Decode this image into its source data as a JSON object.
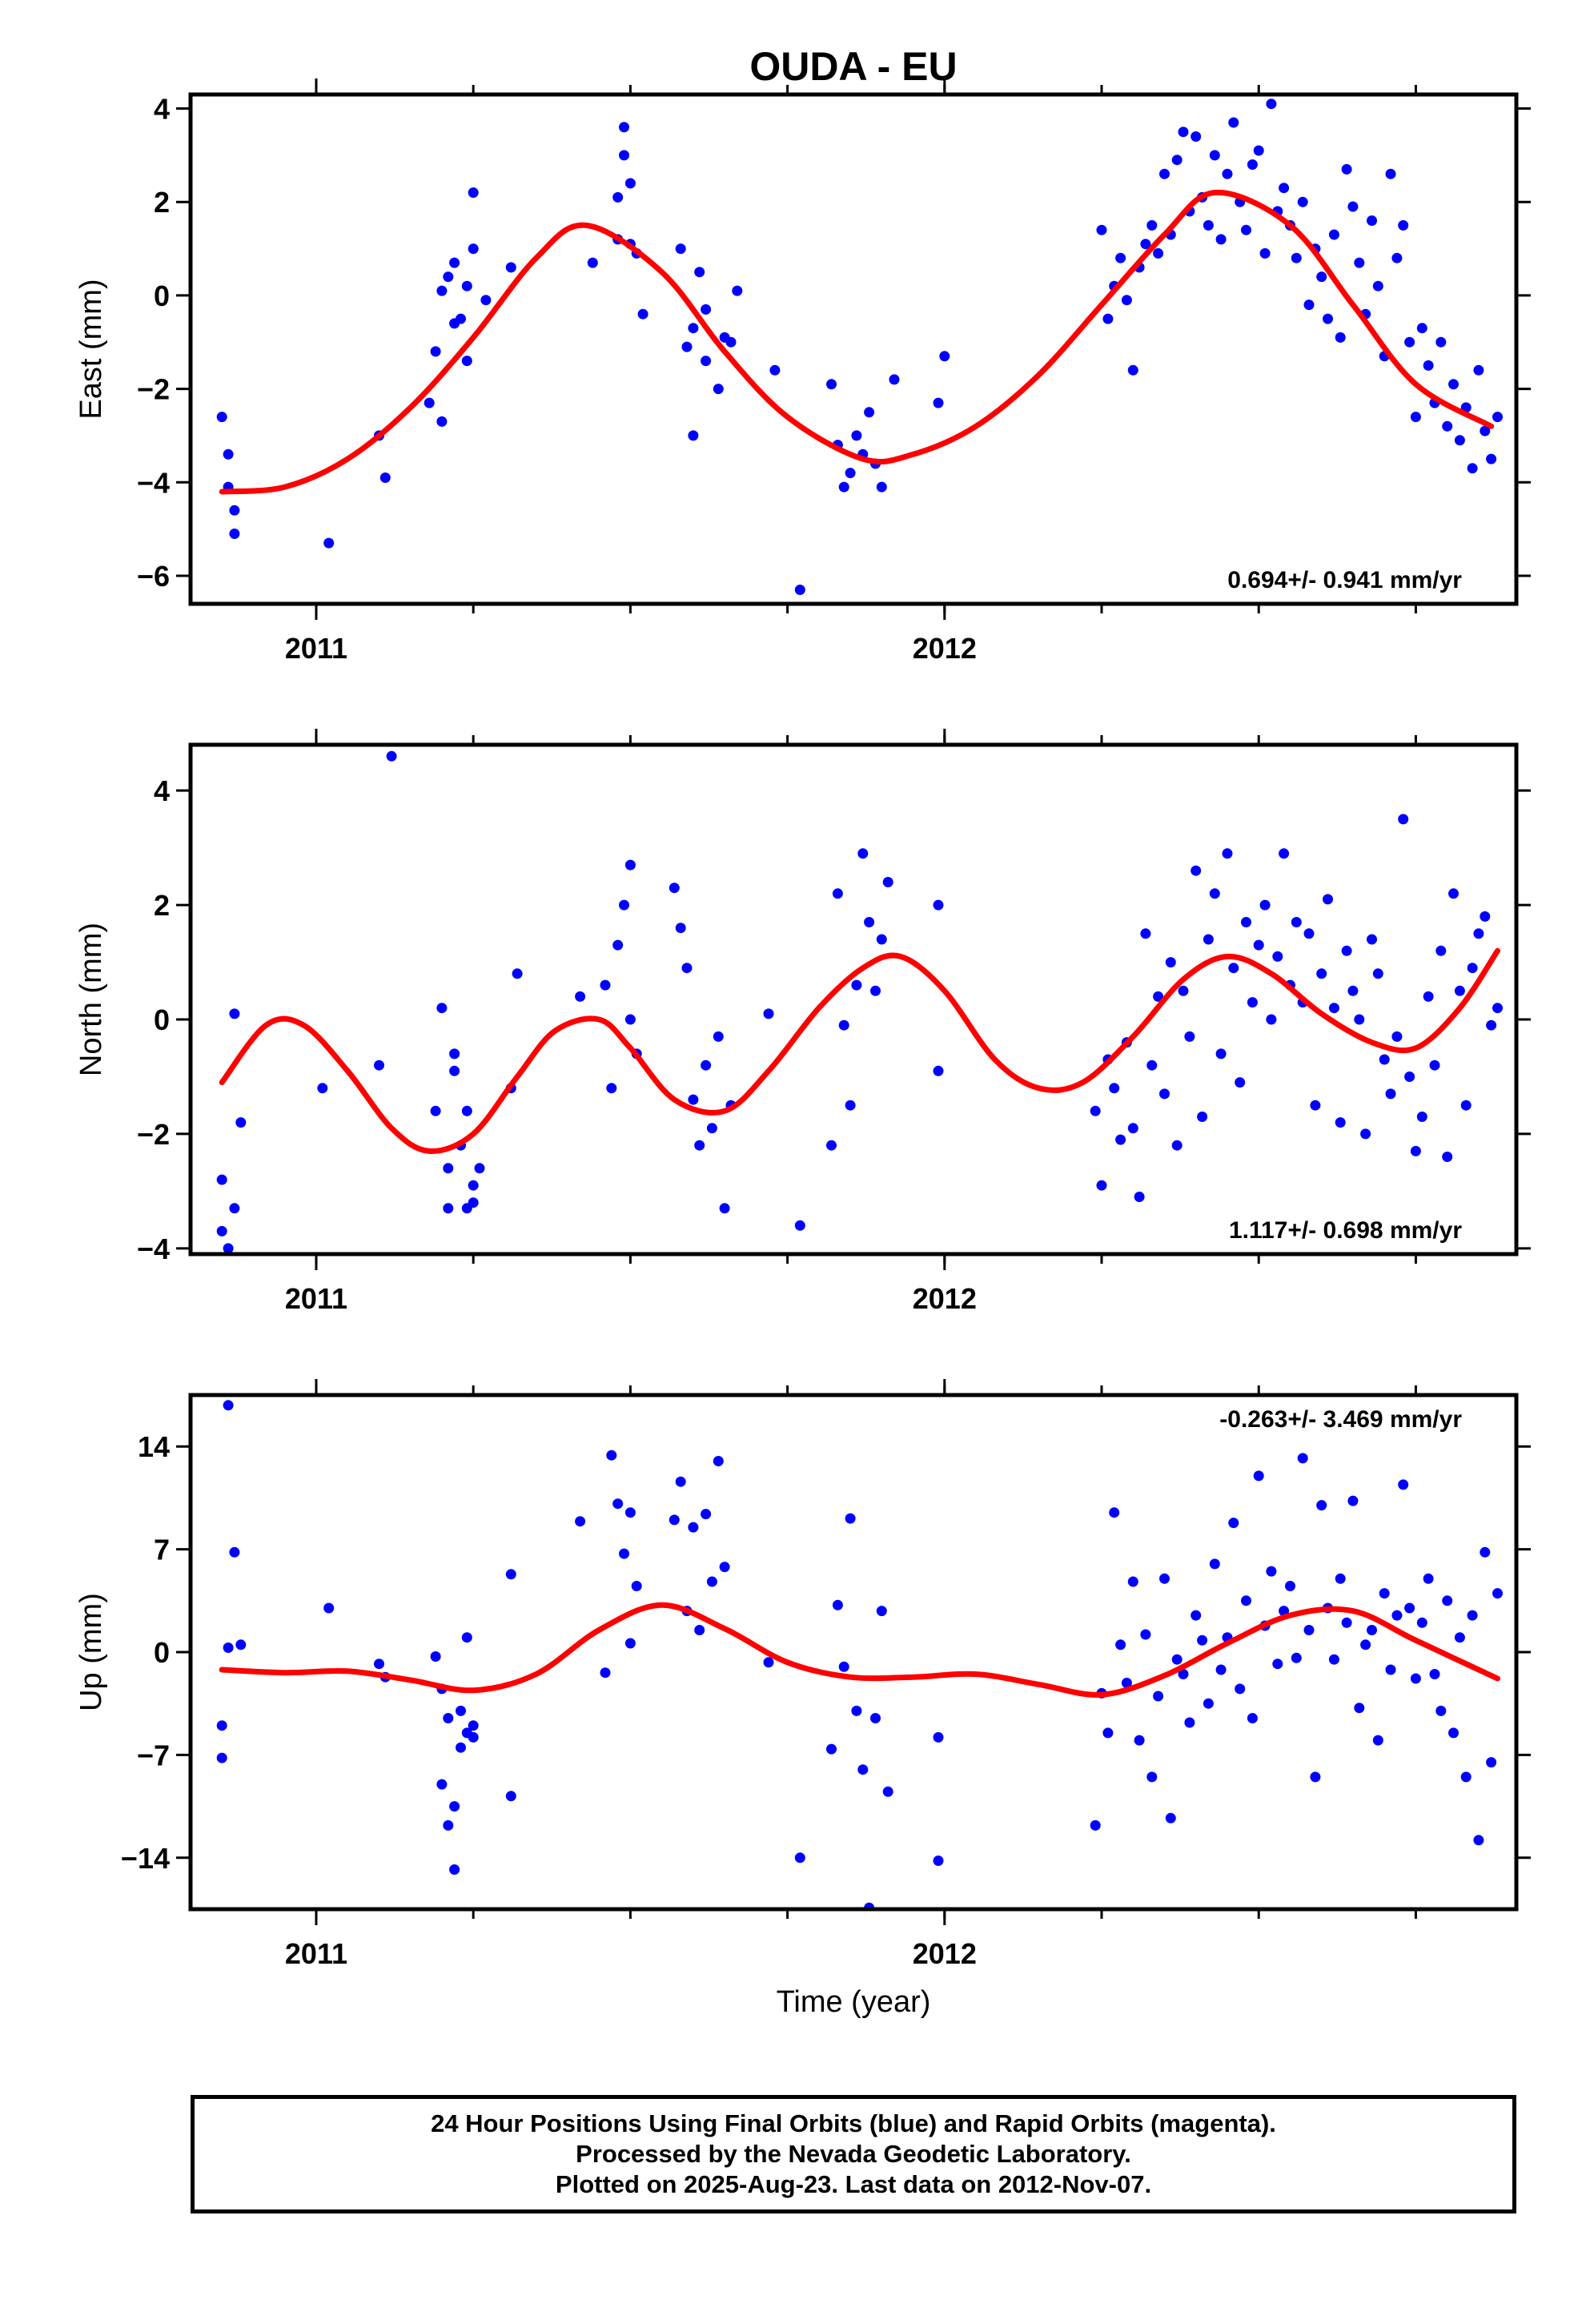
{
  "title": "OUDA - EU",
  "xlabel": "Time (year)",
  "colors": {
    "final_orbits": "#0000ff",
    "model": "#ff0000",
    "frame": "#000000"
  },
  "footer": {
    "line1": "24 Hour Positions Using Final Orbits (blue) and Rapid Orbits (magenta).",
    "line2": "Processed by the Nevada Geodetic Laboratory.",
    "line3": "Plotted on 2025-Aug-23. Last data on 2012-Nov-07."
  },
  "chart_data": [
    {
      "type": "scatter",
      "ylabel": "East (mm)",
      "xlim": [
        2010.8,
        2012.91
      ],
      "ylim": [
        -6.6,
        4.3
      ],
      "xticks": [
        2011,
        2012
      ],
      "yticks": [
        -6,
        -4,
        -2,
        0,
        2,
        4
      ],
      "rate": "0.694+/- 0.941 mm/yr",
      "model": {
        "x": [
          2010.85,
          2010.95,
          2011.05,
          2011.15,
          2011.25,
          2011.35,
          2011.43,
          2011.55,
          2011.65,
          2011.75,
          2011.87,
          2011.95,
          2012.05,
          2012.15,
          2012.25,
          2012.35,
          2012.43,
          2012.55,
          2012.65,
          2012.75,
          2012.87
        ],
        "y": [
          -4.2,
          -4.1,
          -3.5,
          -2.4,
          -0.9,
          0.8,
          1.5,
          0.5,
          -1.2,
          -2.6,
          -3.5,
          -3.4,
          -2.8,
          -1.7,
          -0.2,
          1.3,
          2.2,
          1.5,
          -0.2,
          -1.9,
          -2.8
        ]
      },
      "points": {
        "x": [
          2010.85,
          2010.86,
          2010.86,
          2010.87,
          2010.87,
          2011.02,
          2011.1,
          2011.11,
          2011.18,
          2011.19,
          2011.2,
          2011.2,
          2011.21,
          2011.22,
          2011.22,
          2011.23,
          2011.24,
          2011.24,
          2011.25,
          2011.25,
          2011.27,
          2011.31,
          2011.44,
          2011.48,
          2011.48,
          2011.49,
          2011.49,
          2011.5,
          2011.5,
          2011.51,
          2011.52,
          2011.58,
          2011.59,
          2011.6,
          2011.6,
          2011.61,
          2011.62,
          2011.62,
          2011.64,
          2011.65,
          2011.66,
          2011.67,
          2011.73,
          2011.77,
          2011.82,
          2011.83,
          2011.84,
          2011.85,
          2011.86,
          2011.87,
          2011.88,
          2011.89,
          2011.9,
          2011.92,
          2011.99,
          2012.0,
          2012.25,
          2012.26,
          2012.27,
          2012.28,
          2012.29,
          2012.3,
          2012.31,
          2012.32,
          2012.33,
          2012.34,
          2012.35,
          2012.36,
          2012.37,
          2012.38,
          2012.39,
          2012.4,
          2012.41,
          2012.42,
          2012.43,
          2012.44,
          2012.45,
          2012.46,
          2012.47,
          2012.48,
          2012.49,
          2012.5,
          2012.51,
          2012.52,
          2012.53,
          2012.54,
          2012.55,
          2012.56,
          2012.57,
          2012.58,
          2012.59,
          2012.6,
          2012.61,
          2012.62,
          2012.63,
          2012.64,
          2012.65,
          2012.66,
          2012.67,
          2012.68,
          2012.69,
          2012.7,
          2012.71,
          2012.72,
          2012.73,
          2012.74,
          2012.75,
          2012.76,
          2012.77,
          2012.78,
          2012.79,
          2012.8,
          2012.81,
          2012.82,
          2012.83,
          2012.84,
          2012.85,
          2012.86,
          2012.87,
          2012.88
        ],
        "y": [
          -2.6,
          -3.4,
          -4.1,
          -5.1,
          -4.6,
          -5.3,
          -3.0,
          -3.9,
          -2.3,
          -1.2,
          0.1,
          -2.7,
          0.4,
          -0.6,
          0.7,
          -0.5,
          -1.4,
          0.2,
          2.2,
          1.0,
          -0.1,
          0.6,
          0.7,
          1.2,
          2.1,
          3.6,
          3.0,
          2.4,
          1.1,
          0.9,
          -0.4,
          1.0,
          -1.1,
          -3.0,
          -0.7,
          0.5,
          -1.4,
          -0.3,
          -2.0,
          -0.9,
          -1.0,
          0.1,
          -1.6,
          -6.3,
          -1.9,
          -3.2,
          -4.1,
          -3.8,
          -3.0,
          -3.4,
          -2.5,
          -3.6,
          -4.1,
          -1.8,
          -2.3,
          -1.3,
          1.4,
          -0.5,
          0.2,
          0.8,
          -0.1,
          -1.6,
          0.6,
          1.1,
          1.5,
          0.9,
          2.6,
          1.3,
          2.9,
          3.5,
          1.8,
          3.4,
          2.1,
          1.5,
          3.0,
          1.2,
          2.6,
          3.7,
          2.0,
          1.4,
          2.8,
          3.1,
          0.9,
          4.1,
          1.8,
          2.3,
          1.5,
          0.8,
          2.0,
          -0.2,
          1.0,
          0.4,
          -0.5,
          1.3,
          -0.9,
          2.7,
          1.9,
          0.7,
          -0.4,
          1.6,
          0.2,
          -1.3,
          2.6,
          0.8,
          1.5,
          -1.0,
          -2.6,
          -0.7,
          -1.5,
          -2.3,
          -1.0,
          -2.8,
          -1.9,
          -3.1,
          -2.4,
          -3.7,
          -1.6,
          -2.9,
          -3.5,
          -2.6
        ]
      }
    },
    {
      "type": "scatter",
      "ylabel": "North (mm)",
      "xlim": [
        2010.8,
        2012.91
      ],
      "ylim": [
        -4.1,
        4.8
      ],
      "xticks": [
        2011,
        2012
      ],
      "yticks": [
        -4,
        -2,
        0,
        2,
        4
      ],
      "rate": "1.117+/- 0.698 mm/yr",
      "model": {
        "x": [
          2010.85,
          2010.92,
          2010.98,
          2011.05,
          2011.12,
          2011.18,
          2011.25,
          2011.32,
          2011.38,
          2011.45,
          2011.5,
          2011.57,
          2011.65,
          2011.72,
          2011.8,
          2011.87,
          2011.93,
          2012.0,
          2012.08,
          2012.15,
          2012.22,
          2012.3,
          2012.38,
          2012.45,
          2012.52,
          2012.6,
          2012.68,
          2012.75,
          2012.82,
          2012.88
        ],
        "y": [
          -1.1,
          -0.1,
          -0.1,
          -0.9,
          -1.9,
          -2.3,
          -2.0,
          -1.0,
          -0.2,
          0.0,
          -0.5,
          -1.4,
          -1.6,
          -0.9,
          0.2,
          0.9,
          1.1,
          0.5,
          -0.7,
          -1.2,
          -1.1,
          -0.3,
          0.7,
          1.1,
          0.8,
          0.1,
          -0.4,
          -0.5,
          0.2,
          1.2
        ]
      },
      "points": {
        "x": [
          2010.85,
          2010.85,
          2010.86,
          2010.87,
          2010.87,
          2010.88,
          2011.01,
          2011.1,
          2011.12,
          2011.19,
          2011.2,
          2011.21,
          2011.21,
          2011.22,
          2011.22,
          2011.23,
          2011.24,
          2011.24,
          2011.25,
          2011.25,
          2011.26,
          2011.31,
          2011.32,
          2011.42,
          2011.46,
          2011.47,
          2011.48,
          2011.49,
          2011.5,
          2011.5,
          2011.51,
          2011.57,
          2011.58,
          2011.59,
          2011.6,
          2011.61,
          2011.62,
          2011.63,
          2011.64,
          2011.65,
          2011.66,
          2011.72,
          2011.77,
          2011.82,
          2011.83,
          2011.84,
          2011.85,
          2011.86,
          2011.87,
          2011.88,
          2011.89,
          2011.9,
          2011.91,
          2011.99,
          2011.99,
          2012.24,
          2012.25,
          2012.26,
          2012.27,
          2012.28,
          2012.29,
          2012.3,
          2012.31,
          2012.32,
          2012.33,
          2012.34,
          2012.35,
          2012.36,
          2012.37,
          2012.38,
          2012.39,
          2012.4,
          2012.41,
          2012.42,
          2012.43,
          2012.44,
          2012.45,
          2012.46,
          2012.47,
          2012.48,
          2012.49,
          2012.5,
          2012.51,
          2012.52,
          2012.53,
          2012.54,
          2012.55,
          2012.56,
          2012.57,
          2012.58,
          2012.59,
          2012.6,
          2012.61,
          2012.62,
          2012.63,
          2012.64,
          2012.65,
          2012.66,
          2012.67,
          2012.68,
          2012.69,
          2012.7,
          2012.71,
          2012.72,
          2012.73,
          2012.74,
          2012.75,
          2012.76,
          2012.77,
          2012.78,
          2012.79,
          2012.8,
          2012.81,
          2012.82,
          2012.83,
          2012.84,
          2012.85,
          2012.86,
          2012.87,
          2012.88
        ],
        "y": [
          -2.8,
          -3.7,
          -4.0,
          -3.3,
          0.1,
          -1.8,
          -1.2,
          -0.8,
          4.6,
          -1.6,
          0.2,
          -2.6,
          -3.3,
          -0.9,
          -0.6,
          -2.2,
          -3.3,
          -1.6,
          -2.9,
          -3.2,
          -2.6,
          -1.2,
          0.8,
          0.4,
          0.6,
          -1.2,
          1.3,
          2.0,
          0.0,
          2.7,
          -0.6,
          2.3,
          1.6,
          0.9,
          -1.4,
          -2.2,
          -0.8,
          -1.9,
          -0.3,
          -3.3,
          -1.5,
          0.1,
          -3.6,
          -2.2,
          2.2,
          -0.1,
          -1.5,
          0.6,
          2.9,
          1.7,
          0.5,
          1.4,
          2.4,
          2.0,
          -0.9,
          -1.6,
          -2.9,
          -0.7,
          -1.2,
          -2.1,
          -0.4,
          -1.9,
          -3.1,
          1.5,
          -0.8,
          0.4,
          -1.3,
          1.0,
          -2.2,
          0.5,
          -0.3,
          2.6,
          -1.7,
          1.4,
          2.2,
          -0.6,
          2.9,
          0.9,
          -1.1,
          1.7,
          0.3,
          1.3,
          2.0,
          0.0,
          1.1,
          2.9,
          0.6,
          1.7,
          0.3,
          1.5,
          -1.5,
          0.8,
          2.1,
          0.2,
          -1.8,
          1.2,
          0.5,
          0.0,
          -2.0,
          1.4,
          0.8,
          -0.7,
          -1.3,
          -0.3,
          3.5,
          -1.0,
          -2.3,
          -1.7,
          0.4,
          -0.8,
          1.2,
          -2.4,
          2.2,
          0.5,
          -1.5,
          0.9,
          1.5,
          1.8,
          -0.1,
          0.2
        ]
      }
    },
    {
      "type": "scatter",
      "ylabel": "Up (mm)",
      "xlim": [
        2010.8,
        2012.91
      ],
      "ylim": [
        -17.5,
        17.5
      ],
      "xticks": [
        2011,
        2012
      ],
      "yticks": [
        -14,
        -7,
        0,
        7,
        14
      ],
      "rate": "-0.263+/- 3.469 mm/yr",
      "model": {
        "x": [
          2010.85,
          2010.95,
          2011.05,
          2011.15,
          2011.25,
          2011.35,
          2011.45,
          2011.55,
          2011.65,
          2011.75,
          2011.85,
          2011.95,
          2012.05,
          2012.15,
          2012.25,
          2012.35,
          2012.45,
          2012.55,
          2012.65,
          2012.75,
          2012.88
        ],
        "y": [
          -1.2,
          -1.4,
          -1.3,
          -1.9,
          -2.6,
          -1.5,
          1.5,
          3.2,
          1.6,
          -0.7,
          -1.7,
          -1.7,
          -1.5,
          -2.2,
          -2.9,
          -1.6,
          0.6,
          2.5,
          2.8,
          0.8,
          -1.8
        ]
      },
      "points": {
        "x": [
          2010.85,
          2010.85,
          2010.86,
          2010.86,
          2010.87,
          2010.88,
          2011.02,
          2011.1,
          2011.11,
          2011.19,
          2011.2,
          2011.2,
          2011.21,
          2011.21,
          2011.22,
          2011.22,
          2011.23,
          2011.23,
          2011.24,
          2011.24,
          2011.25,
          2011.25,
          2011.31,
          2011.31,
          2011.42,
          2011.46,
          2011.47,
          2011.48,
          2011.49,
          2011.5,
          2011.5,
          2011.51,
          2011.57,
          2011.58,
          2011.59,
          2011.6,
          2011.61,
          2011.62,
          2011.63,
          2011.64,
          2011.65,
          2011.72,
          2011.77,
          2011.82,
          2011.83,
          2011.84,
          2011.85,
          2011.86,
          2011.87,
          2011.88,
          2011.89,
          2011.9,
          2011.91,
          2011.99,
          2011.99,
          2012.24,
          2012.25,
          2012.26,
          2012.27,
          2012.28,
          2012.29,
          2012.3,
          2012.31,
          2012.32,
          2012.33,
          2012.34,
          2012.35,
          2012.36,
          2012.37,
          2012.38,
          2012.39,
          2012.4,
          2012.41,
          2012.42,
          2012.43,
          2012.44,
          2012.45,
          2012.46,
          2012.47,
          2012.48,
          2012.49,
          2012.5,
          2012.51,
          2012.52,
          2012.53,
          2012.54,
          2012.55,
          2012.56,
          2012.57,
          2012.58,
          2012.59,
          2012.6,
          2012.61,
          2012.62,
          2012.63,
          2012.64,
          2012.65,
          2012.66,
          2012.67,
          2012.68,
          2012.69,
          2012.7,
          2012.71,
          2012.72,
          2012.73,
          2012.74,
          2012.75,
          2012.76,
          2012.77,
          2012.78,
          2012.79,
          2012.8,
          2012.81,
          2012.82,
          2012.83,
          2012.84,
          2012.85,
          2012.86,
          2012.87,
          2012.88
        ],
        "y": [
          -7.2,
          -5.0,
          0.3,
          16.8,
          6.8,
          0.5,
          3.0,
          -0.8,
          -1.7,
          -0.3,
          -2.5,
          -9.0,
          -4.5,
          -11.8,
          -10.5,
          -14.8,
          -4.0,
          -6.5,
          1.0,
          -5.5,
          -5.0,
          -5.8,
          5.3,
          -9.8,
          8.9,
          -1.4,
          13.4,
          10.1,
          6.7,
          0.6,
          9.5,
          4.5,
          9.0,
          11.6,
          2.8,
          8.5,
          1.5,
          9.4,
          4.8,
          13.0,
          5.8,
          -0.7,
          -14.0,
          -6.6,
          3.2,
          -1.0,
          9.1,
          -4.0,
          -8.0,
          -17.4,
          -4.5,
          2.8,
          -9.5,
          -5.8,
          -14.2,
          -11.8,
          -2.8,
          -5.5,
          9.5,
          0.5,
          -2.1,
          4.8,
          -6.0,
          1.2,
          -8.5,
          -3.0,
          5.0,
          -11.3,
          -0.5,
          -1.5,
          -4.8,
          2.5,
          0.8,
          -3.5,
          6.0,
          -1.2,
          1.0,
          8.8,
          -2.5,
          3.5,
          -4.5,
          12.0,
          1.8,
          5.5,
          -0.8,
          2.8,
          4.5,
          -0.4,
          13.2,
          1.5,
          -8.5,
          10.0,
          3.0,
          -0.5,
          5.0,
          2.0,
          10.3,
          -3.8,
          0.5,
          1.5,
          -6.0,
          4.0,
          -1.2,
          2.5,
          11.4,
          3.0,
          -1.8,
          2.0,
          5.0,
          -1.5,
          -4.0,
          3.5,
          -5.5,
          1.0,
          -8.5,
          2.5,
          -12.8,
          6.8,
          -7.5,
          4.0
        ]
      }
    }
  ]
}
